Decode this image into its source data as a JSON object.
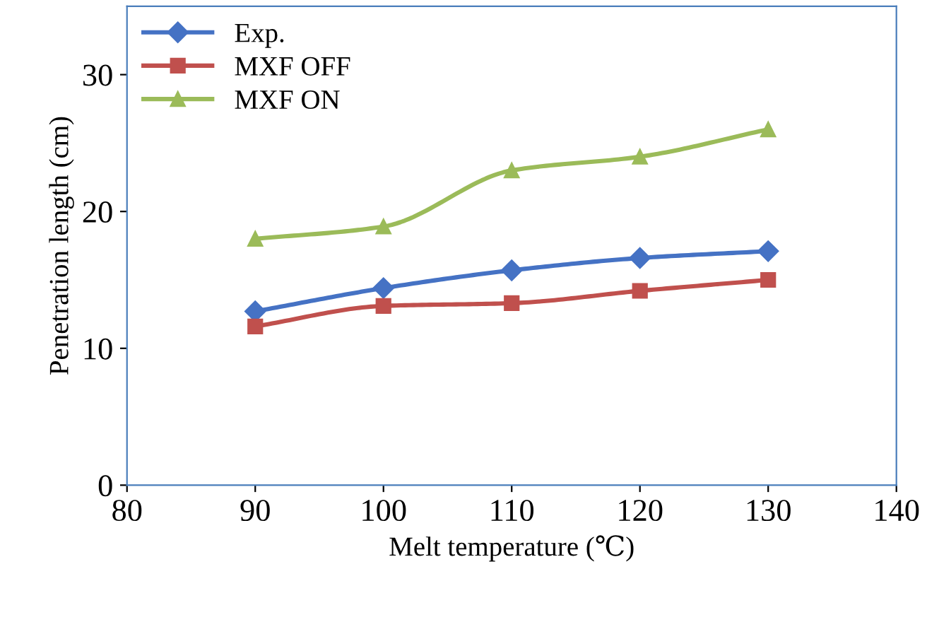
{
  "chart_data": {
    "type": "line",
    "xlabel": "Melt temperature (℃)",
    "ylabel": "Penetration length (cm)",
    "x": [
      90,
      100,
      110,
      120,
      130
    ],
    "series": [
      {
        "name": "Exp.",
        "color": "#4572c4",
        "marker": "diamond",
        "values": [
          12.7,
          14.4,
          15.7,
          16.6,
          17.1
        ]
      },
      {
        "name": "MXF OFF",
        "color": "#c0504d",
        "marker": "square",
        "values": [
          11.6,
          13.1,
          13.3,
          14.2,
          15.0
        ]
      },
      {
        "name": "MXF ON",
        "color": "#9bbb59",
        "marker": "triangle",
        "values": [
          18.0,
          18.9,
          23.0,
          24.0,
          26.0
        ]
      }
    ],
    "xlim": [
      80,
      140
    ],
    "xticks": [
      80,
      90,
      100,
      110,
      120,
      130,
      140
    ],
    "ylim": [
      0,
      35
    ],
    "yticks": [
      0,
      10,
      20,
      30
    ],
    "grid": false,
    "legend": "top left",
    "line_style": "solid"
  }
}
